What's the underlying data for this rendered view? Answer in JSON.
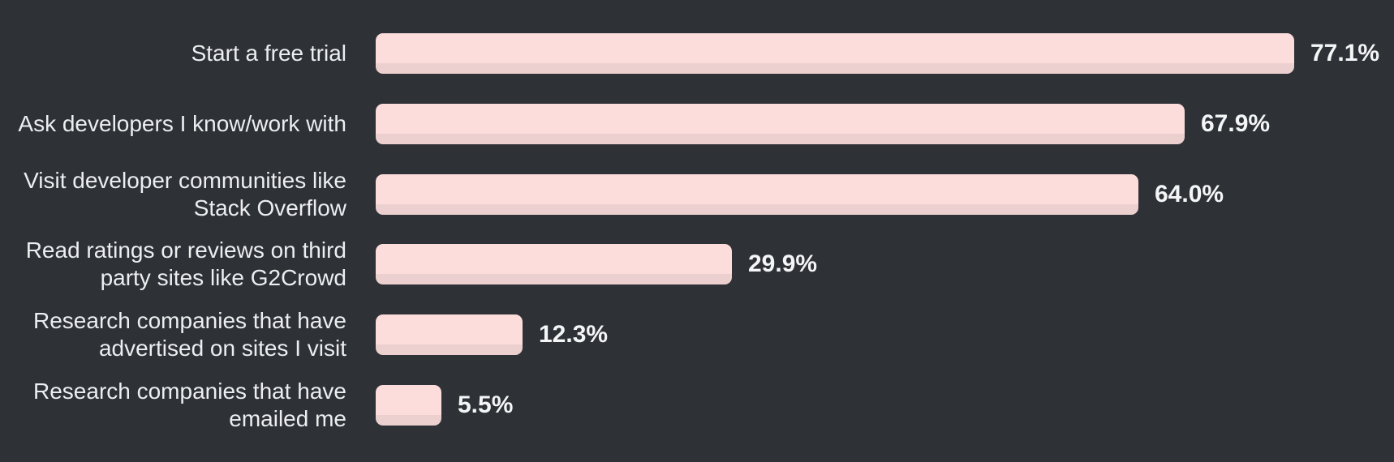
{
  "chart_data": {
    "type": "bar",
    "orientation": "horizontal",
    "categories": [
      "Start a free trial",
      "Ask developers I know/work with",
      "Visit developer communities like\nStack Overflow",
      "Read ratings or reviews on third\nparty sites like G2Crowd",
      "Research companies that have\nadvertised on sites I visit",
      "Research companies that have\nemailed me"
    ],
    "values": [
      77.1,
      67.9,
      64.0,
      29.9,
      12.3,
      5.5
    ],
    "display_values": [
      "77.1%",
      "67.9%",
      "64.0%",
      "29.9%",
      "12.3%",
      "5.5%"
    ],
    "value_suffix": "%",
    "xlim": [
      0,
      85.5
    ],
    "grid": false,
    "legend": false,
    "background_color": "#2e3136",
    "bar_color": "#fddcdc",
    "bar_shadow_color": "#ecd0d0",
    "label_color": "#eceef0",
    "value_color": "#f4f5f6"
  }
}
